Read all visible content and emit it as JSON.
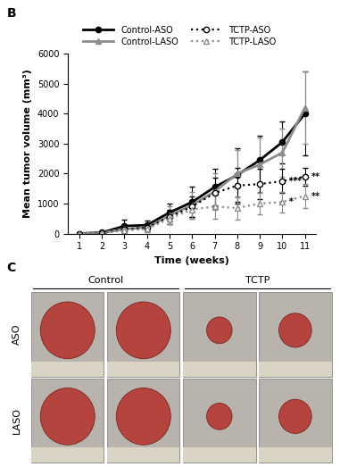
{
  "chart_data": {
    "type": "line",
    "panel_label": "B",
    "x_label": "Time (weeks)",
    "y_label": "Mean tumor volume (mm³)",
    "x": [
      1,
      2,
      3,
      4,
      5,
      6,
      7,
      8,
      9,
      10,
      11
    ],
    "xlim": [
      0.5,
      11.5
    ],
    "xticks": [
      1,
      2,
      3,
      4,
      5,
      6,
      7,
      8,
      9,
      10,
      11
    ],
    "ylim": [
      0,
      6000
    ],
    "yticks": [
      0,
      1000,
      2000,
      3000,
      4000,
      5000,
      6000
    ],
    "grid": false,
    "legend": "upper center",
    "series": [
      {
        "name": "Control-ASO",
        "color": "#000000",
        "marker": "circle",
        "line_style": "solid",
        "values": [
          0,
          30,
          250,
          280,
          700,
          1050,
          1550,
          1950,
          2450,
          3050,
          4000
        ],
        "error": [
          0,
          30,
          200,
          150,
          300,
          500,
          600,
          900,
          800,
          700,
          1400
        ]
      },
      {
        "name": "Control-LASO",
        "color": "#8c8c8c",
        "marker": "triangle",
        "line_style": "solid",
        "values": [
          0,
          20,
          150,
          200,
          600,
          950,
          1400,
          2000,
          2300,
          2700,
          4200
        ],
        "error": [
          0,
          20,
          150,
          150,
          300,
          450,
          600,
          800,
          900,
          800,
          1200
        ]
      },
      {
        "name": "TCTP-ASO",
        "color": "#000000",
        "marker": "circle_open",
        "line_style": "dotted",
        "values": [
          0,
          20,
          130,
          200,
          550,
          900,
          1350,
          1600,
          1650,
          1750,
          1900
        ],
        "error": [
          0,
          20,
          100,
          100,
          250,
          350,
          500,
          600,
          500,
          400,
          300
        ]
      },
      {
        "name": "TCTP-LASO",
        "color": "#8c8c8c",
        "marker": "triangle_open",
        "line_style": "dotted",
        "values": [
          0,
          10,
          100,
          150,
          500,
          800,
          900,
          850,
          1000,
          1050,
          1250
        ],
        "error": [
          0,
          10,
          80,
          100,
          200,
          300,
          400,
          400,
          350,
          350,
          400
        ]
      }
    ],
    "annotations": [
      {
        "text": "***",
        "x": 10,
        "series": "TCTP-ASO"
      },
      {
        "text": "**",
        "x": 11,
        "series": "TCTP-ASO"
      },
      {
        "text": "*",
        "x": 10,
        "series": "TCTP-LASO"
      },
      {
        "text": "**",
        "x": 11,
        "series": "TCTP-LASO"
      }
    ]
  },
  "panel_c": {
    "label": "C",
    "columns": [
      "Control",
      "TCTP"
    ],
    "rows": [
      "ASO",
      "LASO"
    ]
  }
}
